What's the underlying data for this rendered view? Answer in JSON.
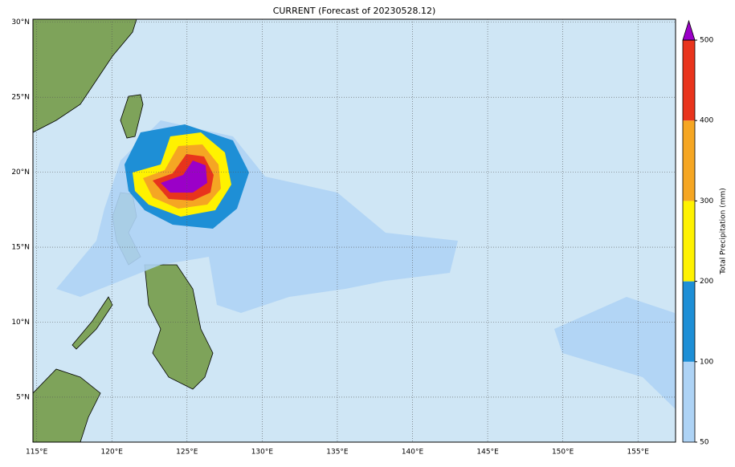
{
  "title": "CURRENT (Forecast of 20230528.12)",
  "map": {
    "lon_range": [
      114.75,
      157.5
    ],
    "lat_range": [
      2,
      30.2
    ],
    "grid": true,
    "ocean_color": "#cfe6f5",
    "lon_ticks": [
      {
        "value": 115,
        "label": "115°E"
      },
      {
        "value": 120,
        "label": "120°E"
      },
      {
        "value": 125,
        "label": "125°E"
      },
      {
        "value": 130,
        "label": "130°E"
      },
      {
        "value": 135,
        "label": "135°E"
      },
      {
        "value": 140,
        "label": "140°E"
      },
      {
        "value": 145,
        "label": "145°E"
      },
      {
        "value": 150,
        "label": "150°E"
      },
      {
        "value": 155,
        "label": "155°E"
      }
    ],
    "lat_ticks": [
      {
        "value": 30,
        "label": "30°N"
      },
      {
        "value": 25,
        "label": "25°N"
      },
      {
        "value": 20,
        "label": "20°N"
      },
      {
        "value": 15,
        "label": "15°N"
      },
      {
        "value": 10,
        "label": "10°N"
      },
      {
        "value": 5,
        "label": "5°N"
      }
    ]
  },
  "colorbar": {
    "label": "Total Precipitation (mm)",
    "levels": [
      50,
      100,
      200,
      300,
      400,
      500
    ],
    "colors": [
      "#aed3f5",
      "#1e8fd6",
      "#fff200",
      "#f5a623",
      "#e8341c",
      "#9b00c8"
    ]
  }
}
